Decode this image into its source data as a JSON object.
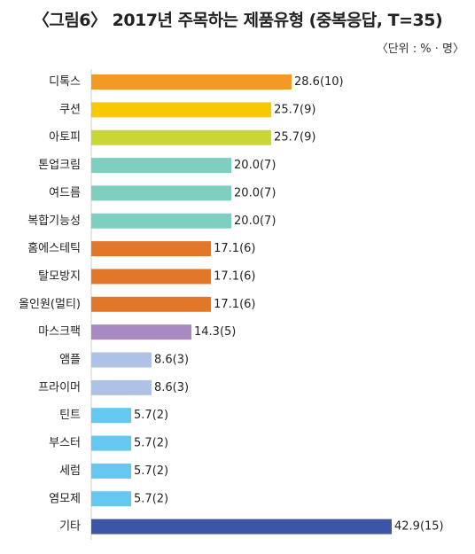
{
  "title": "〈그림6〉 2017년 주목하는 제품유형 (중복응답, T=35)",
  "unit": "〈단위 : % · 명〉",
  "chart_data": {
    "type": "bar",
    "orientation": "horizontal",
    "title": "〈그림6〉 2017년 주목하는 제품유형 (중복응답, T=35)",
    "unit_note": "〈단위 : % · 명〉",
    "categories": [
      "디톡스",
      "쿠션",
      "아토피",
      "톤업크림",
      "여드름",
      "복합기능성",
      "홈에스테틱",
      "탈모방지",
      "올인원(멀티)",
      "마스크팩",
      "앰플",
      "프라이머",
      "틴트",
      "부스터",
      "세럼",
      "염모제",
      "기타"
    ],
    "values": [
      28.6,
      25.7,
      25.7,
      20.0,
      20.0,
      20.0,
      17.1,
      17.1,
      17.1,
      14.3,
      8.6,
      8.6,
      5.7,
      5.7,
      5.7,
      5.7,
      42.9
    ],
    "counts": [
      10,
      9,
      9,
      7,
      7,
      7,
      6,
      6,
      6,
      5,
      3,
      3,
      2,
      2,
      2,
      2,
      15
    ],
    "data_labels": [
      "28.6(10)",
      "25.7(9)",
      "25.7(9)",
      "20.0(7)",
      "20.0(7)",
      "20.0(7)",
      "17.1(6)",
      "17.1(6)",
      "17.1(6)",
      "14.3(5)",
      "8.6(3)",
      "8.6(3)",
      "5.7(2)",
      "5.7(2)",
      "5.7(2)",
      "5.7(2)",
      "42.9(15)"
    ],
    "colors": [
      "#f39a26",
      "#f8c800",
      "#c8d733",
      "#7fcfc0",
      "#7fcfc0",
      "#7fcfc0",
      "#e2772a",
      "#e2772a",
      "#e2772a",
      "#a889c2",
      "#aec2e6",
      "#aec2e6",
      "#64c8f0",
      "#64c8f0",
      "#64c8f0",
      "#64c8f0",
      "#3d55a5"
    ],
    "xlim": [
      0,
      42.9
    ],
    "grid": false,
    "legend": "none"
  }
}
